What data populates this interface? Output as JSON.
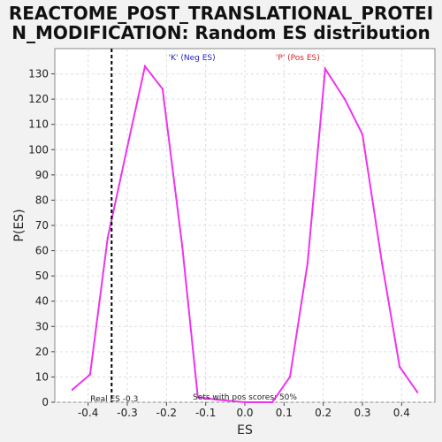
{
  "chart_data": {
    "type": "line",
    "title_line1": "REACTOME_POST_TRANSLATIONAL_PROTEI",
    "title_line2": "N_MODIFICATION: Random ES distribution",
    "xlabel": "ES",
    "ylabel": "P(ES)",
    "xlim": [
      -0.485,
      0.485
    ],
    "ylim": [
      0,
      140
    ],
    "x_ticks": [
      -0.4,
      -0.3,
      -0.2,
      -0.1,
      0.0,
      0.1,
      0.2,
      0.3,
      0.4
    ],
    "x_tick_labels": [
      "-0.4",
      "-0.3",
      "-0.2",
      "-0.1",
      "0.0",
      "0.1",
      "0.2",
      "0.3",
      "0.4"
    ],
    "y_ticks": [
      0,
      10,
      20,
      30,
      40,
      50,
      60,
      70,
      80,
      90,
      100,
      110,
      120,
      130
    ],
    "grid": true,
    "series": [
      {
        "color": "#ee33ee",
        "x": [
          -0.44,
          -0.395,
          -0.35,
          -0.3,
          -0.255,
          -0.21,
          -0.16,
          -0.12,
          -0.07,
          0.0,
          0.07,
          0.115,
          0.16,
          0.205,
          0.255,
          0.3,
          0.35,
          0.395,
          0.44
        ],
        "y": [
          5,
          11,
          65,
          101,
          133,
          124,
          62,
          2,
          1,
          0,
          0,
          10,
          55,
          132,
          120,
          106,
          55,
          14,
          4
        ]
      }
    ],
    "real_es": -0.34,
    "real_es_label": "Real ES -0.3",
    "neg_label": "'K' (Neg ES)",
    "pos_label": "'P' (Pos ES)",
    "pos_scores_label": "Sets with pos scores: 50%",
    "colors": {
      "neg_label": "#2222cc",
      "pos_label": "#dd2222",
      "line": "#ee33ee",
      "plot_bg": "#ffffff",
      "page_bg": "#f2f2f2"
    }
  }
}
